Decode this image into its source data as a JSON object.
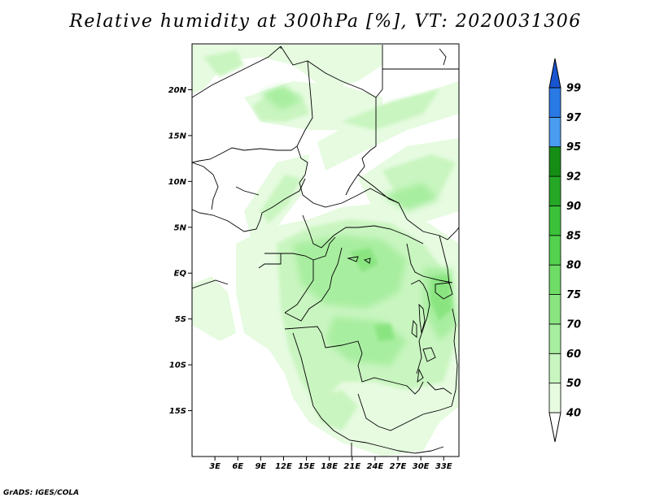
{
  "title": "Relative humidity at 300hPa [%], VT: 2020031306",
  "credit": "GrADS: IGES/COLA",
  "map": {
    "lat_range": [
      -20,
      25
    ],
    "lon_range": [
      0,
      35
    ],
    "lat_ticks": [
      {
        "value": 20,
        "label": "20N"
      },
      {
        "value": 15,
        "label": "15N"
      },
      {
        "value": 10,
        "label": "10N"
      },
      {
        "value": 5,
        "label": "5N"
      },
      {
        "value": 0,
        "label": "EQ"
      },
      {
        "value": -5,
        "label": "5S"
      },
      {
        "value": -10,
        "label": "10S"
      },
      {
        "value": -15,
        "label": "15S"
      }
    ],
    "lon_ticks": [
      {
        "value": 3,
        "label": "3E"
      },
      {
        "value": 6,
        "label": "6E"
      },
      {
        "value": 9,
        "label": "9E"
      },
      {
        "value": 12,
        "label": "12E"
      },
      {
        "value": 15,
        "label": "15E"
      },
      {
        "value": 18,
        "label": "18E"
      },
      {
        "value": 21,
        "label": "21E"
      },
      {
        "value": 24,
        "label": "24E"
      },
      {
        "value": 27,
        "label": "27E"
      },
      {
        "value": 30,
        "label": "30E"
      },
      {
        "value": 33,
        "label": "33E"
      }
    ]
  },
  "colorbar": {
    "levels": [
      {
        "label": "40",
        "color": "#e6fbe0"
      },
      {
        "label": "50",
        "color": "#c9f5c0"
      },
      {
        "label": "60",
        "color": "#a8eea0"
      },
      {
        "label": "70",
        "color": "#8ae581"
      },
      {
        "label": "75",
        "color": "#6fdc68"
      },
      {
        "label": "80",
        "color": "#54d14f"
      },
      {
        "label": "85",
        "color": "#3cc23a"
      },
      {
        "label": "90",
        "color": "#26a826"
      },
      {
        "label": "92",
        "color": "#168e16"
      },
      {
        "label": "95",
        "color": "#4a9cf0"
      },
      {
        "label": "97",
        "color": "#2a7ae6"
      },
      {
        "label": "99",
        "color": "#1f5fd6"
      }
    ],
    "below_color": "#ffffff",
    "above_color": "#1a55d0"
  },
  "colors": {
    "rh_40": "#e6fbe0",
    "rh_50": "#c9f5c0",
    "rh_60": "#a8eea0",
    "rh_70": "#8ae581"
  }
}
